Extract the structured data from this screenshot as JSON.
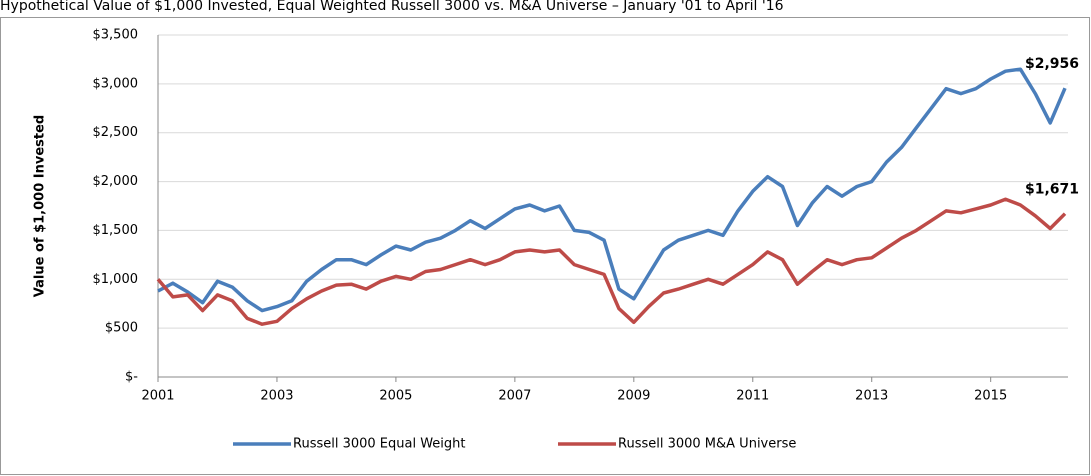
{
  "chart_data": {
    "type": "line",
    "title": "Hypothetical Value of $1,000 Invested, Equal Weighted Russell 3000 vs. M&A Universe – January '01 to April '16",
    "ylabel": "Value of $1,000 Invested",
    "x": [
      2001,
      2001.25,
      2001.5,
      2001.75,
      2002,
      2002.25,
      2002.5,
      2002.75,
      2003,
      2003.25,
      2003.5,
      2003.75,
      2004,
      2004.25,
      2004.5,
      2004.75,
      2005,
      2005.25,
      2005.5,
      2005.75,
      2006,
      2006.25,
      2006.5,
      2006.75,
      2007,
      2007.25,
      2007.5,
      2007.75,
      2008,
      2008.25,
      2008.5,
      2008.75,
      2009,
      2009.25,
      2009.5,
      2009.75,
      2010,
      2010.25,
      2010.5,
      2010.75,
      2011,
      2011.25,
      2011.5,
      2011.75,
      2012,
      2012.25,
      2012.5,
      2012.75,
      2013,
      2013.25,
      2013.5,
      2013.75,
      2014,
      2014.25,
      2014.5,
      2014.75,
      2015,
      2015.25,
      2015.5,
      2015.75,
      2016,
      2016.25
    ],
    "series": [
      {
        "name": "Russell 3000 Equal Weight",
        "color": "#4a7ebb",
        "values": [
          880,
          960,
          870,
          760,
          980,
          920,
          780,
          680,
          720,
          780,
          980,
          1100,
          1200,
          1200,
          1150,
          1250,
          1340,
          1300,
          1380,
          1420,
          1500,
          1600,
          1520,
          1620,
          1720,
          1760,
          1700,
          1750,
          1500,
          1480,
          1400,
          900,
          800,
          1050,
          1300,
          1400,
          1450,
          1500,
          1450,
          1700,
          1900,
          2050,
          1950,
          1550,
          1780,
          1950,
          1850,
          1950,
          2000,
          2200,
          2350,
          2550,
          2750,
          2950,
          2900,
          2950,
          3050,
          3130,
          3150,
          2900,
          2600,
          2956
        ],
        "value_labels": [
          null,
          null,
          null,
          null,
          null,
          null,
          null,
          null,
          null,
          null,
          null,
          null,
          null,
          null,
          null,
          null,
          null,
          null,
          null,
          null,
          null,
          null,
          null,
          null,
          null,
          null,
          null,
          null,
          null,
          null,
          null,
          null,
          null,
          null,
          null,
          null,
          null,
          null,
          null,
          null,
          null,
          null,
          null,
          null,
          null,
          null,
          null,
          null,
          null,
          null,
          null,
          null,
          null,
          null,
          null,
          null,
          null,
          null,
          null,
          null,
          null,
          "$2,956"
        ]
      },
      {
        "name": "Russell 3000 M&A Universe",
        "color": "#be4b48",
        "values": [
          1000,
          820,
          840,
          680,
          840,
          780,
          600,
          540,
          570,
          700,
          800,
          880,
          940,
          950,
          900,
          980,
          1030,
          1000,
          1080,
          1100,
          1150,
          1200,
          1150,
          1200,
          1280,
          1300,
          1280,
          1300,
          1150,
          1100,
          1050,
          700,
          560,
          720,
          860,
          900,
          950,
          1000,
          950,
          1050,
          1150,
          1280,
          1200,
          950,
          1080,
          1200,
          1150,
          1200,
          1220,
          1320,
          1420,
          1500,
          1600,
          1700,
          1680,
          1720,
          1760,
          1820,
          1760,
          1650,
          1520,
          1671
        ],
        "value_labels": [
          null,
          null,
          null,
          null,
          null,
          null,
          null,
          null,
          null,
          null,
          null,
          null,
          null,
          null,
          null,
          null,
          null,
          null,
          null,
          null,
          null,
          null,
          null,
          null,
          null,
          null,
          null,
          null,
          null,
          null,
          null,
          null,
          null,
          null,
          null,
          null,
          null,
          null,
          null,
          null,
          null,
          null,
          null,
          null,
          null,
          null,
          null,
          null,
          null,
          null,
          null,
          null,
          null,
          null,
          null,
          null,
          null,
          null,
          null,
          null,
          null,
          "$1,671"
        ]
      }
    ],
    "xlim": [
      2001,
      2016.3
    ],
    "xticks": [
      2001,
      2003,
      2005,
      2007,
      2009,
      2011,
      2013,
      2015
    ],
    "ylim": [
      0,
      3500
    ],
    "yticks": [
      {
        "value": 0,
        "label": "$-"
      },
      {
        "value": 500,
        "label": "$500"
      },
      {
        "value": 1000,
        "label": "$1,000"
      },
      {
        "value": 1500,
        "label": "$1,500"
      },
      {
        "value": 2000,
        "label": "$2,000"
      },
      {
        "value": 2500,
        "label": "$2,500"
      },
      {
        "value": 3000,
        "label": "$3,000"
      },
      {
        "value": 3500,
        "label": "$3,500"
      }
    ],
    "grid": true
  }
}
